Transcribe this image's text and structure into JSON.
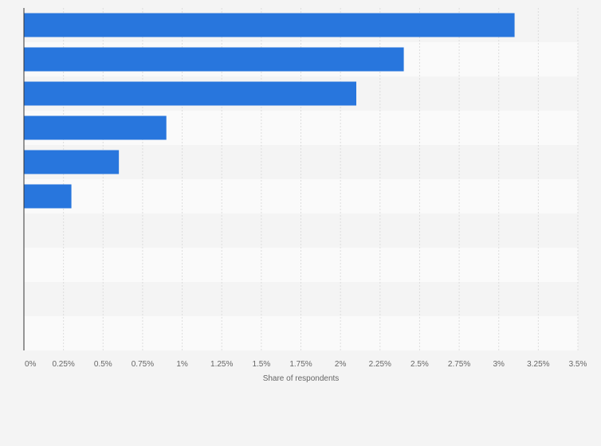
{
  "chart_data": {
    "type": "bar",
    "orientation": "horizontal",
    "categories": [
      "",
      "",
      "",
      "",
      "",
      "",
      "",
      "",
      "",
      ""
    ],
    "values": [
      3.1,
      2.4,
      2.1,
      0.9,
      0.6,
      0.3,
      0,
      0,
      0,
      0
    ],
    "xlabel": "Share of respondents",
    "xlim": [
      0,
      3.5
    ],
    "x_ticks": [
      "0%",
      "0.25%",
      "0.5%",
      "0.75%",
      "1%",
      "1.25%",
      "1.5%",
      "1.75%",
      "2%",
      "2.25%",
      "2.5%",
      "2.75%",
      "3%",
      "3.25%",
      "3.5%"
    ],
    "grid": true,
    "bar_color": "#2876dd",
    "band_colors": [
      "#f4f4f4",
      "#fafafa"
    ],
    "gridline_color": "#dddddd",
    "axis_color": "#333333"
  }
}
